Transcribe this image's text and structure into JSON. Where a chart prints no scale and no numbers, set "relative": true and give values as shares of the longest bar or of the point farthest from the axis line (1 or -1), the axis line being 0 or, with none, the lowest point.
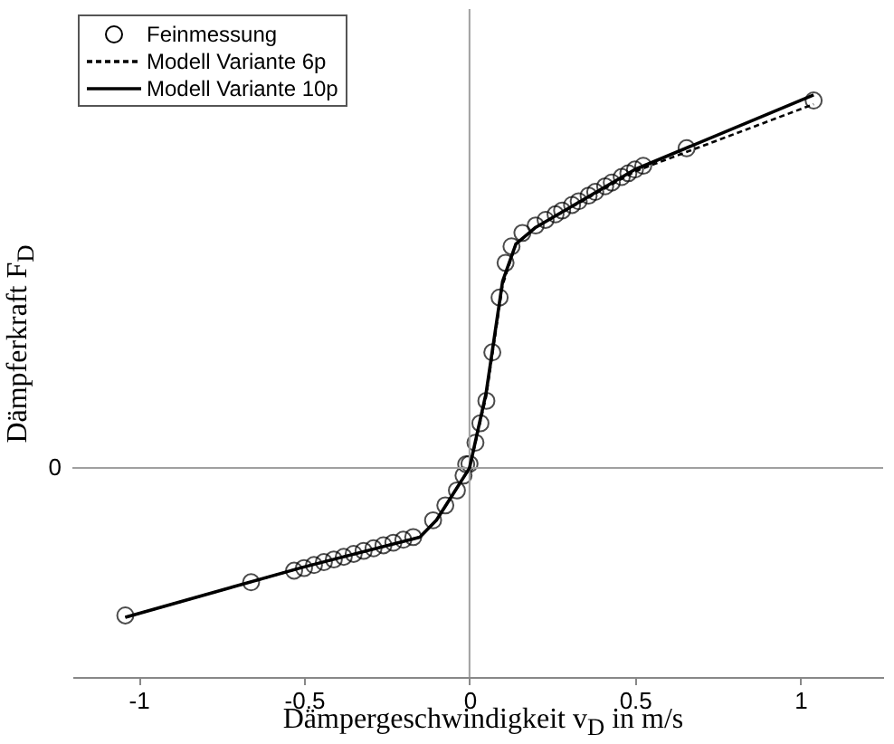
{
  "chart_data": {
    "type": "line",
    "relative": true,
    "xlabel": "Dämpergeschwindigkeit v$_{D}$ in m/s",
    "ylabel": "Dämpferkraft F$_{D}$",
    "xlim": [
      -1.2,
      1.25
    ],
    "xticks": [
      -1,
      -0.5,
      0,
      0.5,
      1
    ],
    "legend": "top left",
    "grid": false,
    "ref_lines": [
      {
        "axis": "y",
        "value": 0,
        "label": "0",
        "color": "#a0a0a0"
      },
      {
        "axis": "x",
        "value": 0,
        "color": "#a0a0a0"
      }
    ],
    "series": [
      {
        "name": "Feinmessung",
        "type": "scatter",
        "marker": "circle",
        "color": "#000000",
        "x": [
          -1.04,
          -0.66,
          -0.53,
          -0.5,
          -0.47,
          -0.44,
          -0.41,
          -0.38,
          -0.35,
          -0.32,
          -0.29,
          -0.26,
          -0.23,
          -0.2,
          -0.17,
          -0.11,
          -0.073,
          -0.038,
          -0.018,
          -0.01,
          0.0,
          0.018,
          0.033,
          0.051,
          0.069,
          0.091,
          0.109,
          0.127,
          0.16,
          0.2,
          0.23,
          0.26,
          0.28,
          0.31,
          0.33,
          0.36,
          0.38,
          0.41,
          0.43,
          0.46,
          0.48,
          0.5,
          0.525,
          0.656,
          1.04
        ],
        "values": [
          -0.395,
          -0.306,
          -0.275,
          -0.268,
          -0.26,
          -0.252,
          -0.245,
          -0.238,
          -0.23,
          -0.222,
          -0.215,
          -0.207,
          -0.2,
          -0.192,
          -0.185,
          -0.14,
          -0.1,
          -0.06,
          -0.02,
          0.01,
          0.011,
          0.068,
          0.12,
          0.18,
          0.31,
          0.457,
          0.55,
          0.594,
          0.63,
          0.65,
          0.665,
          0.68,
          0.69,
          0.705,
          0.715,
          0.73,
          0.74,
          0.755,
          0.765,
          0.78,
          0.79,
          0.8,
          0.81,
          0.857,
          0.985
        ]
      },
      {
        "name": "Modell Variante 6p",
        "marker": "none",
        "line_style": "dashed",
        "color": "#000000",
        "x": [
          -1.04,
          -0.5,
          -0.15,
          -0.1,
          -0.05,
          0.0,
          0.05,
          0.1,
          0.14,
          0.2,
          0.5,
          1.04
        ],
        "values": [
          -0.4,
          -0.265,
          -0.185,
          -0.14,
          -0.07,
          0.0,
          0.19,
          0.49,
          0.6,
          0.645,
          0.795,
          0.975
        ]
      },
      {
        "name": "Modell Variante 10p",
        "marker": "none",
        "line_style": "solid",
        "color": "#000000",
        "x": [
          -1.04,
          -0.5,
          -0.15,
          -0.1,
          -0.05,
          0.0,
          0.05,
          0.1,
          0.14,
          0.2,
          0.5,
          1.04
        ],
        "values": [
          -0.4,
          -0.265,
          -0.185,
          -0.14,
          -0.07,
          0.0,
          0.2,
          0.5,
          0.6,
          0.645,
          0.8,
          1.0
        ]
      }
    ]
  }
}
